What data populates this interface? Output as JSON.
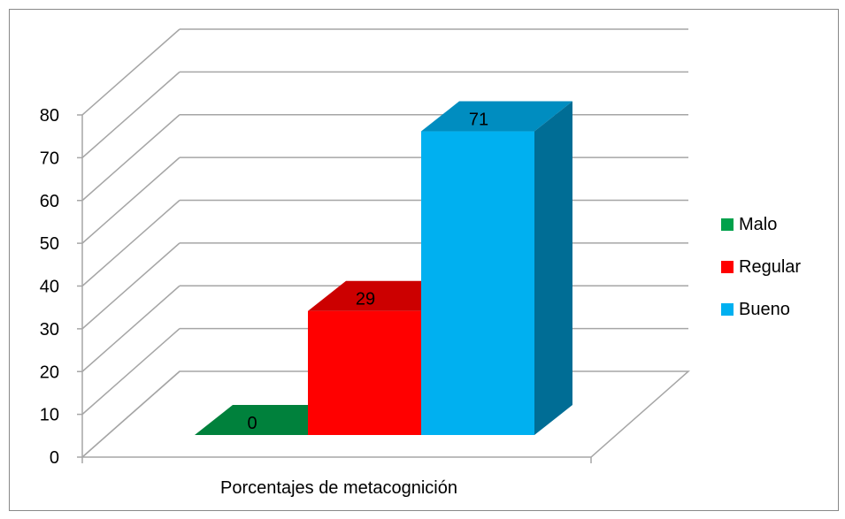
{
  "chart_data": {
    "type": "bar",
    "style": "3d-clustered-column",
    "title": "",
    "categories": [
      "Porcentajes de metacognición"
    ],
    "series": [
      {
        "name": "Malo",
        "values": [
          0
        ],
        "color": "#00A14B"
      },
      {
        "name": "Regular",
        "values": [
          29
        ],
        "color": "#FF0000"
      },
      {
        "name": "Bueno",
        "values": [
          71
        ],
        "color": "#00B0F0"
      }
    ],
    "data_labels": [
      "0",
      "29",
      "71"
    ],
    "xlabel": "Porcentajes de metacognición",
    "ylabel": "",
    "ylim": [
      0,
      80
    ],
    "yticks": [
      "0",
      "10",
      "20",
      "30",
      "40",
      "50",
      "60",
      "70",
      "80"
    ],
    "grid": true,
    "legend_position": "right"
  }
}
